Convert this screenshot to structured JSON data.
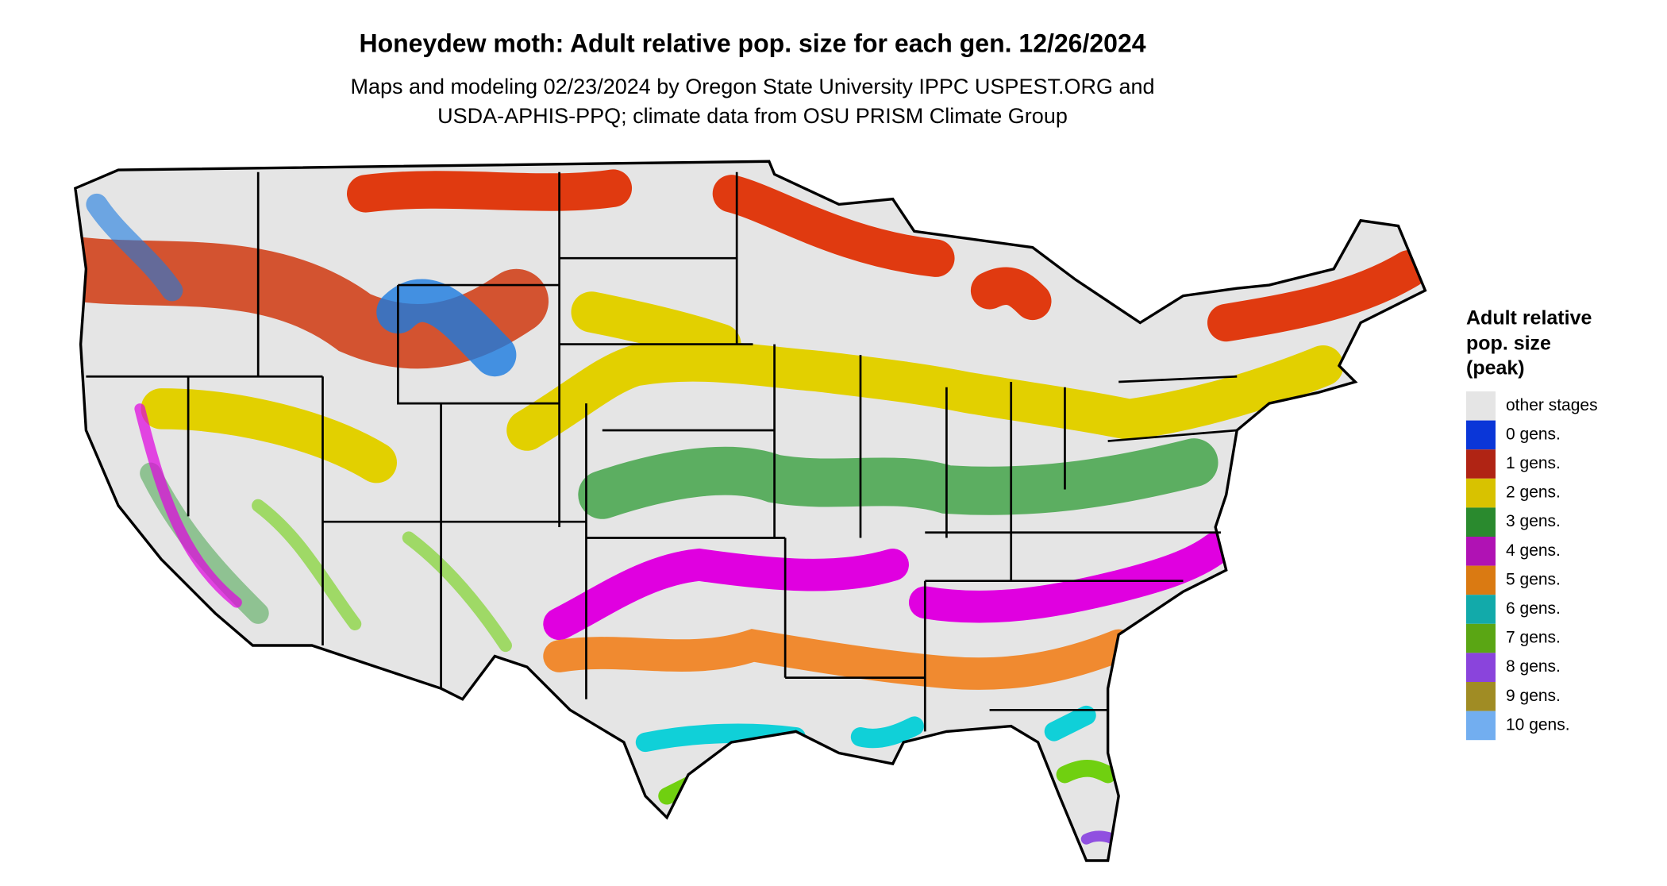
{
  "header": {
    "title": "Honeydew moth: Adult relative pop. size for each gen. 12/26/2024",
    "subtitle_lines": [
      "Maps and modeling 02/23/2024 by Oregon State University IPPC USPEST.ORG and",
      "USDA-APHIS-PPQ; climate data from OSU PRISM Climate Group"
    ]
  },
  "legend": {
    "title_lines": [
      "Adult relative",
      "pop. size",
      "(peak)"
    ],
    "items": [
      {
        "label": "other stages",
        "color": "#e5e5e5"
      },
      {
        "label": "0 gens.",
        "color": "#0a36d8"
      },
      {
        "label": "1 gens.",
        "color": "#b02414"
      },
      {
        "label": "2 gens.",
        "color": "#d8c200"
      },
      {
        "label": "3 gens.",
        "color": "#2a8a2e"
      },
      {
        "label": "4 gens.",
        "color": "#b012b4"
      },
      {
        "label": "5 gens.",
        "color": "#da7a12"
      },
      {
        "label": "6 gens.",
        "color": "#12aaaa"
      },
      {
        "label": "7 gens.",
        "color": "#5aa614"
      },
      {
        "label": "8 gens.",
        "color": "#8a44dc"
      },
      {
        "label": "9 gens.",
        "color": "#a08c24"
      },
      {
        "label": "10 gens.",
        "color": "#72aef0"
      }
    ]
  }
}
